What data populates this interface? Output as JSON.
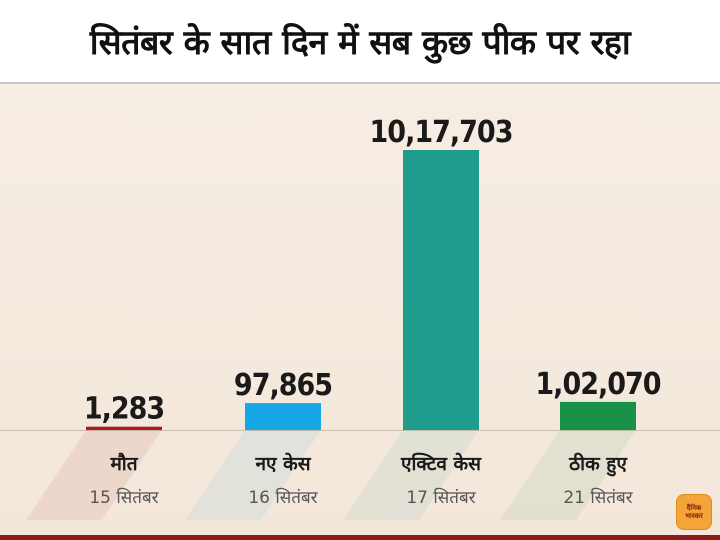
{
  "header": {
    "title": "सितंबर के सात दिन में सब कुछ पीक पर रहा"
  },
  "chart_data": {
    "type": "bar",
    "title": "सितंबर के सात दिन में सब कुछ पीक पर रहा",
    "categories": [
      "मौत",
      "नए केस",
      "एक्टिव केस",
      "ठीक हुए"
    ],
    "dates": [
      "15 सितंबर",
      "16 सितंबर",
      "17 सितंबर",
      "21 सितंबर"
    ],
    "values": [
      1283,
      97865,
      1017703,
      102070
    ],
    "value_labels": [
      "1,283",
      "97,865",
      "10,17,703",
      "1,02,070"
    ],
    "colors": [
      "#a81e1e",
      "#17a6e6",
      "#1f9c8c",
      "#199248"
    ],
    "display_min": [
      12000,
      0,
      0,
      0
    ],
    "ylim": [
      0,
      1017703
    ],
    "xlabel": "",
    "ylabel": "",
    "grid": false,
    "legend": "none"
  },
  "logo": {
    "line1": "दैनिक",
    "line2": "भास्कर"
  },
  "colors": {
    "background": "#f5ebdf",
    "accent": "#8b1a1a",
    "text": "#111111",
    "date_text": "#555555"
  }
}
